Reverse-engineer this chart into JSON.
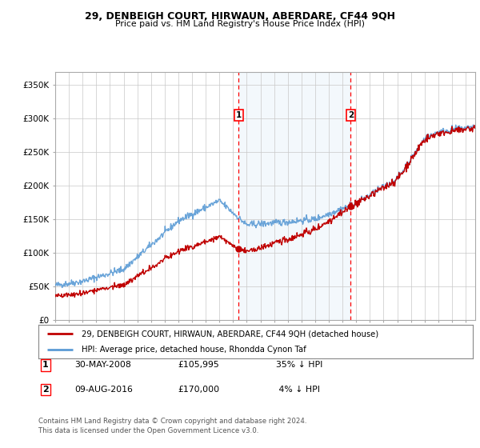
{
  "title": "29, DENBEIGH COURT, HIRWAUN, ABERDARE, CF44 9QH",
  "subtitle": "Price paid vs. HM Land Registry's House Price Index (HPI)",
  "ylabel_ticks": [
    "£0",
    "£50K",
    "£100K",
    "£150K",
    "£200K",
    "£250K",
    "£300K",
    "£350K"
  ],
  "ytick_values": [
    0,
    50000,
    100000,
    150000,
    200000,
    250000,
    300000,
    350000
  ],
  "ylim": [
    0,
    370000
  ],
  "xlim_start": 1995.0,
  "xlim_end": 2025.7,
  "sale1": {
    "date_num": 2008.41,
    "price": 105995,
    "label": "1",
    "date_str": "30-MAY-2008",
    "pct": "35% ↓ HPI"
  },
  "sale2": {
    "date_num": 2016.6,
    "price": 170000,
    "label": "2",
    "date_str": "09-AUG-2016",
    "pct": "4% ↓ HPI"
  },
  "legend_line1": "29, DENBEIGH COURT, HIRWAUN, ABERDARE, CF44 9QH (detached house)",
  "legend_line2": "HPI: Average price, detached house, Rhondda Cynon Taf",
  "footnote": "Contains HM Land Registry data © Crown copyright and database right 2024.\nThis data is licensed under the Open Government Licence v3.0.",
  "hpi_color": "#5B9BD5",
  "price_color": "#C00000",
  "bg_color": "#FFFFFF",
  "plot_bg_color": "#FFFFFF",
  "grid_color": "#C8C8C8",
  "shade_color": "#D8E8F8",
  "dashed_color": "#FF0000"
}
